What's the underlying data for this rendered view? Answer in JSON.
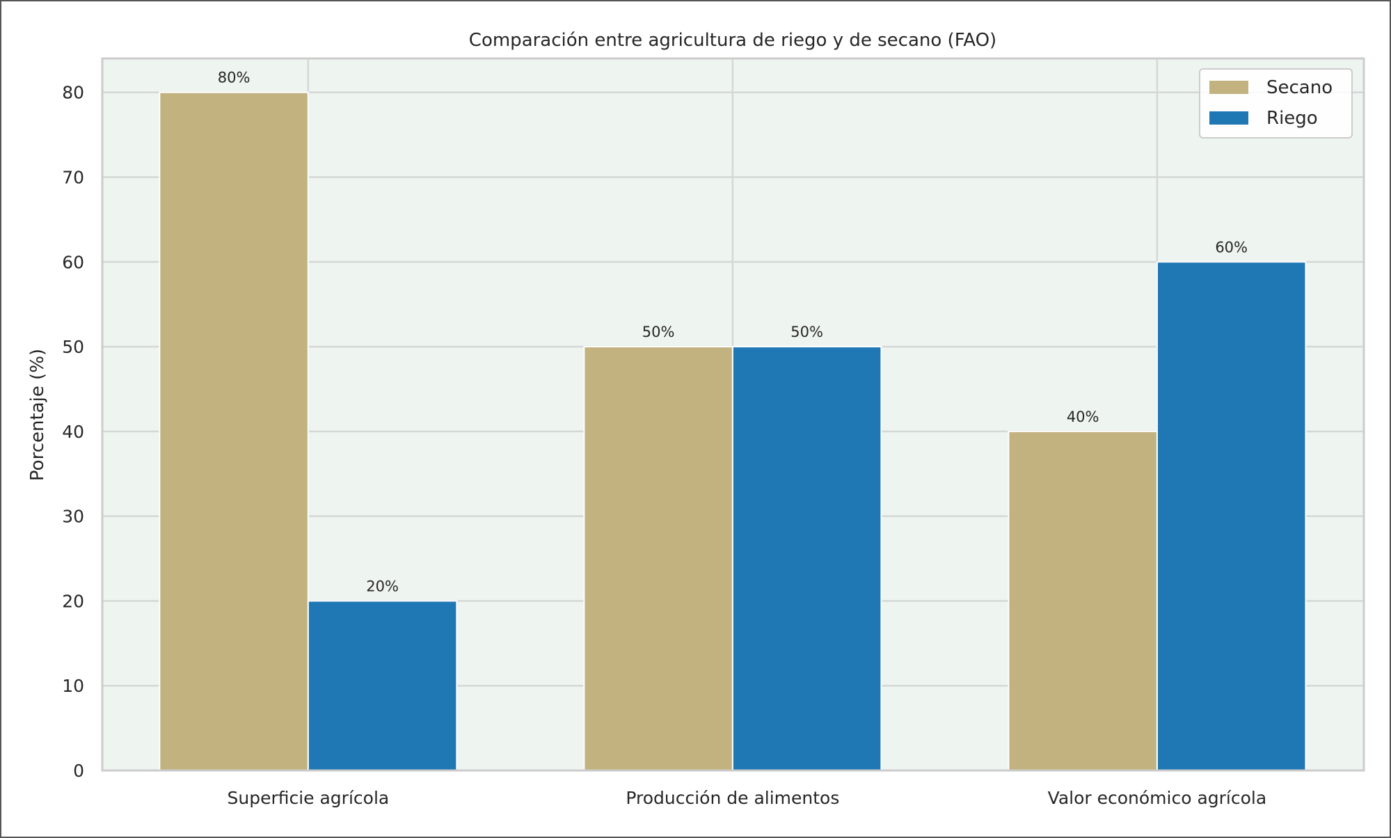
{
  "chart_data": {
    "type": "bar",
    "title": "Comparación entre agricultura de riego y de secano (FAO)",
    "xlabel": "",
    "ylabel": "Porcentaje (%)",
    "categories": [
      "Superficie agrícola",
      "Producción de alimentos",
      "Valor económico agrícola"
    ],
    "series": [
      {
        "name": "Secano",
        "values": [
          80,
          50,
          40
        ],
        "labels": [
          "80%",
          "50%",
          "40%"
        ],
        "color": "#c2b280"
      },
      {
        "name": "Riego",
        "values": [
          20,
          50,
          60
        ],
        "labels": [
          "20%",
          "50%",
          "60%"
        ],
        "color": "#1f77b4"
      }
    ],
    "ylim": [
      0,
      84
    ],
    "yticks": [
      0,
      10,
      20,
      30,
      40,
      50,
      60,
      70,
      80
    ],
    "grid": true,
    "legend_position": "top-right",
    "background_color": "#eef4ef"
  }
}
